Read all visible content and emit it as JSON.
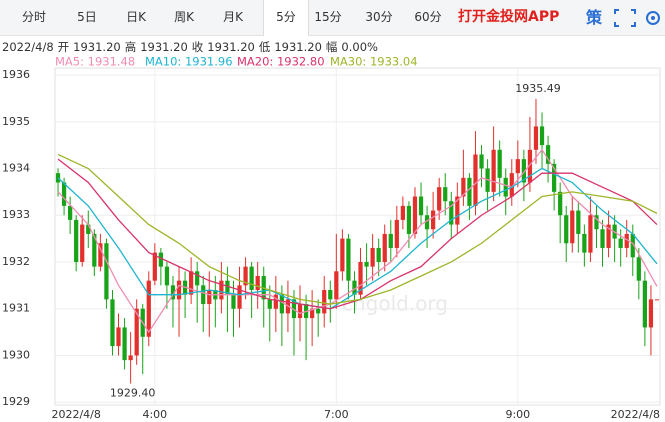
{
  "toolbar": {
    "tabs": [
      "分时",
      "5日",
      "日K",
      "周K",
      "月K",
      "5分",
      "15分",
      "30分",
      "60分"
    ],
    "selected": 5,
    "app_link": "打开金投网APP",
    "strategy": "策"
  },
  "info": {
    "date": "2022/4/8",
    "items": [
      {
        "label": "开",
        "value": "1931.20"
      },
      {
        "label": "高",
        "value": "1931.20"
      },
      {
        "label": "收",
        "value": "1931.20"
      },
      {
        "label": "低",
        "value": "1931.20"
      },
      {
        "label": "幅",
        "value": "0.00%"
      }
    ]
  },
  "chart_data": {
    "type": "candlestick",
    "watermark": "cngold.org",
    "up_color": "#e2302d",
    "down_color": "#18a318",
    "grid": true,
    "xlim": [
      -0.5,
      99.5
    ],
    "xticks": [
      {
        "value": 3,
        "label": "2022/4/8"
      },
      {
        "value": 16,
        "label": "4:00"
      },
      {
        "value": 46,
        "label": "7:00"
      },
      {
        "value": 76,
        "label": "9:00"
      },
      {
        "value": 96,
        "label": "2022/4/8"
      }
    ],
    "ylim": [
      1928.94,
      1936.15
    ],
    "yticks": [
      1929,
      1930,
      1931,
      1932,
      1933,
      1934,
      1935,
      1936
    ],
    "open": [
      1933.9,
      1933.7,
      1933.2,
      1932.9,
      1932.0,
      1932.8,
      1932.6,
      1931.9,
      1932.4,
      1931.2,
      1930.2,
      1930.6,
      1929.9,
      1930.0,
      1931.0,
      1930.4,
      1931.6,
      1932.2,
      1931.9,
      1931.5,
      1931.2,
      1931.6,
      1931.3,
      1931.8,
      1931.5,
      1931.1,
      1931.4,
      1931.2,
      1931.6,
      1931.3,
      1931.0,
      1931.5,
      1931.9,
      1931.4,
      1931.7,
      1931.2,
      1931.0,
      1931.3,
      1930.9,
      1931.2,
      1930.8,
      1931.1,
      1930.8,
      1931.0,
      1930.9,
      1931.4,
      1931.2,
      1931.8,
      1932.5,
      1931.6,
      1931.3,
      1932.0,
      1931.9,
      1932.3,
      1932.0,
      1932.6,
      1932.3,
      1932.9,
      1933.2,
      1932.6,
      1933.4,
      1933.0,
      1932.7,
      1933.1,
      1933.6,
      1933.3,
      1932.8,
      1933.4,
      1933.8,
      1933.2,
      1934.3,
      1934.0,
      1933.5,
      1934.4,
      1933.8,
      1933.4,
      1933.9,
      1934.2,
      1933.7,
      1934.4,
      1934.9,
      1934.5,
      1934.1,
      1933.5,
      1933.0,
      1932.4,
      1933.1,
      1932.6,
      1932.2,
      1933.0,
      1932.7,
      1932.3,
      1932.8,
      1932.5,
      1932.3,
      1932.6,
      1932.1,
      1931.6,
      1930.6,
      1931.2
    ],
    "high": [
      1934.0,
      1933.8,
      1933.4,
      1933.0,
      1933.0,
      1933.1,
      1932.7,
      1932.6,
      1932.5,
      1931.4,
      1930.9,
      1930.8,
      1930.5,
      1931.2,
      1931.1,
      1931.8,
      1932.4,
      1932.3,
      1932.0,
      1931.7,
      1931.9,
      1931.8,
      1932.1,
      1932.0,
      1931.7,
      1931.8,
      1931.7,
      1932.0,
      1931.9,
      1931.6,
      1931.9,
      1932.1,
      1932.0,
      1932.0,
      1931.9,
      1931.5,
      1931.7,
      1931.5,
      1931.6,
      1931.4,
      1931.5,
      1931.3,
      1931.4,
      1931.2,
      1931.7,
      1931.6,
      1932.6,
      1932.7,
      1932.6,
      1931.8,
      1932.3,
      1932.4,
      1932.6,
      1932.5,
      1932.8,
      1932.9,
      1933.2,
      1933.4,
      1933.3,
      1933.6,
      1933.7,
      1933.2,
      1933.5,
      1933.8,
      1933.9,
      1933.5,
      1933.7,
      1934.4,
      1933.9,
      1934.8,
      1934.5,
      1934.2,
      1934.9,
      1934.6,
      1934.0,
      1934.2,
      1934.6,
      1934.4,
      1935.1,
      1935.49,
      1935.2,
      1934.7,
      1934.2,
      1933.7,
      1933.2,
      1933.4,
      1933.3,
      1932.8,
      1933.4,
      1933.2,
      1932.9,
      1933.1,
      1933.0,
      1932.7,
      1932.9,
      1932.8,
      1932.3,
      1931.8,
      1931.5,
      1931.2
    ],
    "low": [
      1933.4,
      1933.0,
      1932.6,
      1931.8,
      1931.9,
      1932.3,
      1931.7,
      1931.8,
      1931.0,
      1930.0,
      1930.0,
      1929.7,
      1929.4,
      1929.8,
      1929.6,
      1930.2,
      1931.5,
      1931.5,
      1931.0,
      1930.6,
      1930.4,
      1930.8,
      1931.1,
      1930.7,
      1930.5,
      1930.4,
      1930.6,
      1930.9,
      1930.5,
      1930.4,
      1930.6,
      1931.2,
      1930.8,
      1931.0,
      1930.6,
      1930.3,
      1930.5,
      1930.2,
      1930.5,
      1930.0,
      1930.3,
      1929.9,
      1930.2,
      1930.4,
      1930.6,
      1930.7,
      1931.0,
      1931.6,
      1931.2,
      1930.9,
      1931.2,
      1931.5,
      1931.6,
      1931.7,
      1931.8,
      1932.0,
      1932.1,
      1932.7,
      1932.3,
      1932.5,
      1932.8,
      1932.3,
      1932.5,
      1932.9,
      1933.0,
      1932.5,
      1932.6,
      1933.2,
      1932.9,
      1933.0,
      1933.6,
      1933.1,
      1933.3,
      1933.4,
      1933.0,
      1933.2,
      1933.6,
      1933.3,
      1933.5,
      1934.1,
      1934.0,
      1933.7,
      1933.1,
      1932.4,
      1932.0,
      1932.2,
      1932.2,
      1931.9,
      1932.0,
      1932.3,
      1931.9,
      1932.1,
      1932.0,
      1931.9,
      1932.1,
      1931.7,
      1931.2,
      1930.2,
      1930.0,
      1931.2
    ],
    "close": [
      1933.7,
      1933.2,
      1932.9,
      1932.0,
      1932.8,
      1932.6,
      1931.9,
      1932.4,
      1931.2,
      1930.2,
      1930.6,
      1929.9,
      1930.0,
      1931.0,
      1930.4,
      1931.6,
      1932.2,
      1931.9,
      1931.5,
      1931.2,
      1931.6,
      1931.3,
      1931.8,
      1931.5,
      1931.1,
      1931.4,
      1931.2,
      1931.6,
      1931.3,
      1931.0,
      1931.5,
      1931.9,
      1931.4,
      1931.7,
      1931.2,
      1931.0,
      1931.3,
      1930.9,
      1931.2,
      1930.8,
      1931.1,
      1930.8,
      1931.0,
      1930.9,
      1931.4,
      1931.2,
      1931.8,
      1932.5,
      1931.6,
      1931.3,
      1932.0,
      1931.9,
      1932.3,
      1932.0,
      1932.6,
      1932.3,
      1932.9,
      1933.2,
      1932.6,
      1933.4,
      1933.0,
      1932.7,
      1933.1,
      1933.6,
      1933.3,
      1932.8,
      1933.4,
      1933.8,
      1933.2,
      1934.3,
      1934.0,
      1933.5,
      1934.4,
      1933.8,
      1933.4,
      1933.9,
      1934.2,
      1933.7,
      1934.4,
      1934.9,
      1934.5,
      1934.1,
      1933.5,
      1933.0,
      1932.4,
      1933.1,
      1932.6,
      1932.2,
      1933.0,
      1932.7,
      1932.3,
      1932.8,
      1932.5,
      1932.3,
      1932.6,
      1932.1,
      1931.6,
      1930.6,
      1931.2,
      1931.2
    ],
    "annotations": [
      {
        "label": "1935.49",
        "value": 1935.49,
        "x": 79
      },
      {
        "label": "1929.40",
        "value": 1929.4,
        "x": 12
      }
    ],
    "ma_x": [
      0,
      5,
      10,
      15,
      20,
      25,
      30,
      35,
      40,
      45,
      50,
      55,
      60,
      65,
      70,
      75,
      80,
      85,
      90,
      95,
      99
    ],
    "series": [
      {
        "name": "MA5: 1931.48",
        "color": "#f08cb4",
        "values": [
          1933.5,
          1932.8,
          1931.5,
          1930.5,
          1931.5,
          1931.3,
          1931.3,
          1931.3,
          1930.9,
          1931.1,
          1931.5,
          1932.0,
          1932.8,
          1933.2,
          1933.8,
          1933.6,
          1934.4,
          1933.4,
          1932.8,
          1932.4,
          1931.48
        ]
      },
      {
        "name": "MA10: 1931.96",
        "color": "#1fb4cf",
        "values": [
          1933.8,
          1933.2,
          1932.3,
          1931.3,
          1931.3,
          1931.4,
          1931.3,
          1931.4,
          1931.1,
          1931.0,
          1931.4,
          1931.8,
          1932.4,
          1932.9,
          1933.3,
          1933.6,
          1934.0,
          1933.7,
          1933.1,
          1932.6,
          1931.96
        ]
      },
      {
        "name": "MA20: 1932.80",
        "color": "#d9336a",
        "values": [
          1934.2,
          1933.7,
          1932.9,
          1932.2,
          1931.9,
          1931.6,
          1931.4,
          1931.2,
          1931.1,
          1931.0,
          1931.2,
          1931.6,
          1931.9,
          1932.5,
          1933.0,
          1933.4,
          1933.9,
          1933.9,
          1933.6,
          1933.3,
          1932.8
        ]
      },
      {
        "name": "MA30: 1933.04",
        "color": "#9cb62a",
        "values": [
          1934.3,
          1934.0,
          1933.4,
          1932.8,
          1932.4,
          1931.9,
          1931.6,
          1931.4,
          1931.2,
          1931.1,
          1931.2,
          1931.4,
          1931.7,
          1932.0,
          1932.4,
          1932.9,
          1933.4,
          1933.5,
          1933.4,
          1933.3,
          1933.04
        ]
      }
    ]
  }
}
